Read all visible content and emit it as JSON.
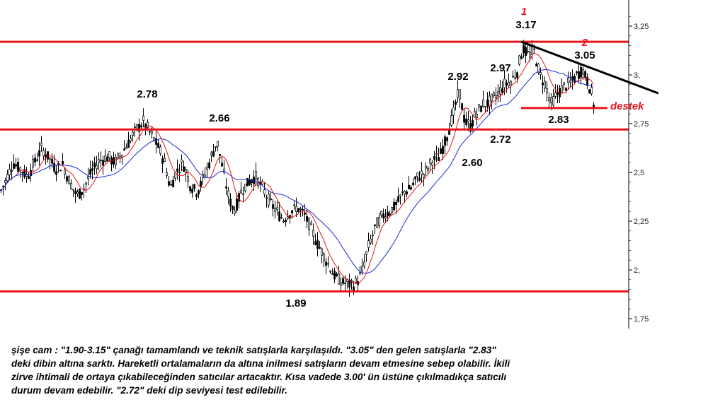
{
  "chart_data": {
    "type": "candlestick",
    "y_axis": {
      "ticks": [
        1.75,
        2.0,
        2.25,
        2.5,
        2.75,
        3.0,
        3.25
      ],
      "tick_labels": [
        "1,75",
        "2,",
        "2,25",
        "2,5",
        "2,75",
        "3,",
        "3,25"
      ],
      "ylim": [
        1.72,
        3.33
      ],
      "position": "right"
    },
    "horizontal_lines": [
      {
        "level": 3.17,
        "color": "#e8141c"
      },
      {
        "level": 2.72,
        "color": "#e8141c"
      },
      {
        "level": 1.89,
        "color": "#e8141c"
      },
      {
        "level": 2.83,
        "color": "#e8141c",
        "label": "destek",
        "partial": true
      }
    ],
    "trendline": {
      "from_price": 3.17,
      "to_price": 2.9,
      "color": "#000000"
    },
    "moving_average_colors": {
      "fast": "#e8141c",
      "slow": "#1a28d8"
    },
    "candle_color": "#000000",
    "price_annotations": [
      {
        "text": "2.78",
        "price": 2.78
      },
      {
        "text": "2.66",
        "price": 2.66
      },
      {
        "text": "1.89",
        "price": 1.89
      },
      {
        "text": "2.92",
        "price": 2.92
      },
      {
        "text": "2.97",
        "price": 2.97
      },
      {
        "text": "3.17",
        "price": 3.17
      },
      {
        "text": "3.05",
        "price": 3.05
      },
      {
        "text": "2.60",
        "price": 2.6
      },
      {
        "text": "2.72",
        "price": 2.72
      },
      {
        "text": "2.83",
        "price": 2.83
      }
    ],
    "markers": [
      {
        "text": "1",
        "color": "#e8141c"
      },
      {
        "text": "2",
        "color": "#e8141c"
      }
    ],
    "destek_label": "destek",
    "price_path": [
      [
        0,
        2.4
      ],
      [
        8,
        2.46
      ],
      [
        18,
        2.55
      ],
      [
        28,
        2.52
      ],
      [
        38,
        2.48
      ],
      [
        48,
        2.55
      ],
      [
        58,
        2.62
      ],
      [
        68,
        2.58
      ],
      [
        78,
        2.52
      ],
      [
        88,
        2.54
      ],
      [
        98,
        2.45
      ],
      [
        108,
        2.38
      ],
      [
        118,
        2.42
      ],
      [
        128,
        2.5
      ],
      [
        140,
        2.56
      ],
      [
        152,
        2.58
      ],
      [
        162,
        2.55
      ],
      [
        172,
        2.6
      ],
      [
        182,
        2.66
      ],
      [
        192,
        2.72
      ],
      [
        202,
        2.76
      ],
      [
        212,
        2.7
      ],
      [
        222,
        2.64
      ],
      [
        232,
        2.55
      ],
      [
        240,
        2.42
      ],
      [
        248,
        2.5
      ],
      [
        258,
        2.55
      ],
      [
        268,
        2.44
      ],
      [
        278,
        2.4
      ],
      [
        288,
        2.48
      ],
      [
        298,
        2.58
      ],
      [
        306,
        2.66
      ],
      [
        314,
        2.52
      ],
      [
        322,
        2.38
      ],
      [
        330,
        2.3
      ],
      [
        340,
        2.4
      ],
      [
        350,
        2.45
      ],
      [
        360,
        2.48
      ],
      [
        370,
        2.42
      ],
      [
        380,
        2.35
      ],
      [
        390,
        2.3
      ],
      [
        400,
        2.26
      ],
      [
        410,
        2.3
      ],
      [
        420,
        2.32
      ],
      [
        430,
        2.28
      ],
      [
        440,
        2.2
      ],
      [
        450,
        2.12
      ],
      [
        460,
        2.05
      ],
      [
        470,
        1.98
      ],
      [
        480,
        1.94
      ],
      [
        490,
        1.93
      ],
      [
        500,
        1.92
      ],
      [
        510,
        1.98
      ],
      [
        520,
        2.12
      ],
      [
        530,
        2.22
      ],
      [
        540,
        2.28
      ],
      [
        550,
        2.3
      ],
      [
        560,
        2.34
      ],
      [
        570,
        2.4
      ],
      [
        580,
        2.42
      ],
      [
        590,
        2.48
      ],
      [
        600,
        2.5
      ],
      [
        610,
        2.56
      ],
      [
        620,
        2.58
      ],
      [
        630,
        2.68
      ],
      [
        640,
        2.8
      ],
      [
        648,
        2.92
      ],
      [
        656,
        2.76
      ],
      [
        664,
        2.74
      ],
      [
        672,
        2.8
      ],
      [
        682,
        2.85
      ],
      [
        692,
        2.86
      ],
      [
        702,
        2.9
      ],
      [
        712,
        2.95
      ],
      [
        722,
        2.97
      ],
      [
        730,
        3.02
      ],
      [
        738,
        3.14
      ],
      [
        746,
        3.1
      ],
      [
        754,
        3.12
      ],
      [
        762,
        3.0
      ],
      [
        770,
        2.95
      ],
      [
        778,
        2.85
      ],
      [
        786,
        2.9
      ],
      [
        796,
        2.94
      ],
      [
        806,
        2.96
      ],
      [
        814,
        3.0
      ],
      [
        822,
        3.03
      ],
      [
        828,
        2.98
      ],
      [
        834,
        2.92
      ],
      [
        838,
        2.85
      ]
    ]
  },
  "commentary": {
    "line1": "şişe cam : \"1.90-3.15\" çanağı tamamlandı ve teknik satışlarla karşılaşıldı. \"3.05\" den gelen satışlarla \"2.83\"",
    "line2": "deki dibin altına sarktı. Hareketli ortalamaların da altına inilmesi satışların devam etmesine sebep olabilir. İkili",
    "line3": "zirve ihtimali de ortaya çıkabileceğinden satıcılar artacaktır. Kısa vadede 3.00' ün üstüne çıkılmadıkça satıcılı",
    "line4": "durum devam edebilir. \"2.72\" deki dip seviyesi test edilebilir."
  }
}
